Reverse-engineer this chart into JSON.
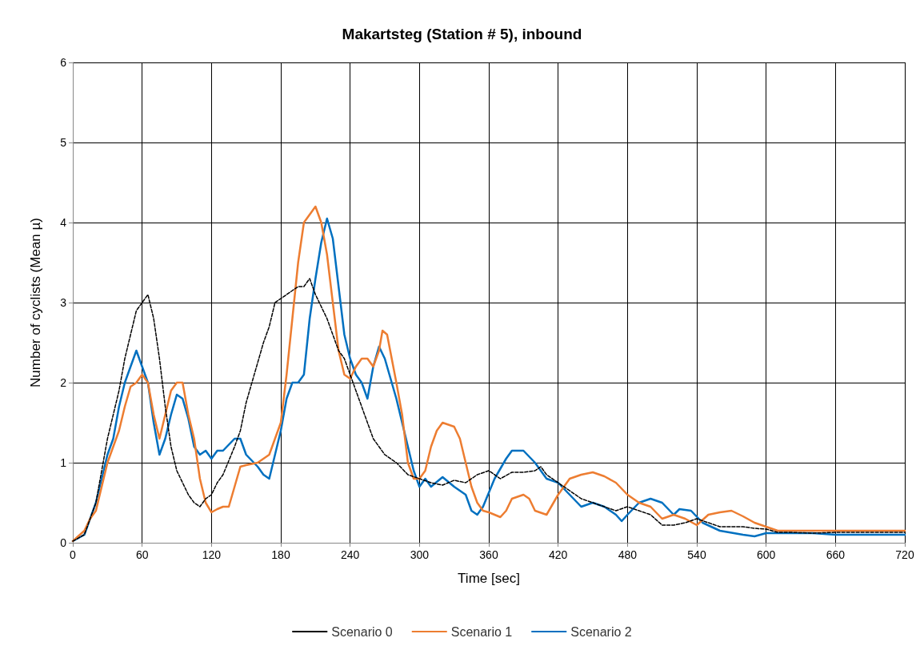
{
  "chart_data": {
    "type": "line",
    "title": "Makartsteg (Station # 5), inbound",
    "xlabel": "Time [sec]",
    "ylabel": "Number of cyclists (Mean µ)",
    "xlim": [
      0,
      720
    ],
    "xticks": [
      0,
      60,
      120,
      180,
      240,
      300,
      360,
      420,
      480,
      540,
      600,
      660,
      720
    ],
    "ylim": [
      0,
      6
    ],
    "yticks": [
      0,
      1,
      2,
      3,
      4,
      5,
      6
    ],
    "grid": true,
    "legend": "bottom",
    "marker": "none",
    "series": [
      {
        "name": "Scenario 0",
        "color": "#000000",
        "line_style": "dashed",
        "x": [
          0,
          10,
          20,
          25,
          30,
          40,
          45,
          50,
          55,
          60,
          65,
          70,
          75,
          80,
          85,
          90,
          95,
          100,
          105,
          110,
          115,
          120,
          125,
          130,
          140,
          145,
          150,
          155,
          160,
          165,
          170,
          175,
          180,
          190,
          195,
          200,
          205,
          210,
          215,
          220,
          225,
          230,
          235,
          240,
          245,
          250,
          255,
          260,
          265,
          270,
          280,
          290,
          300,
          310,
          320,
          330,
          340,
          350,
          360,
          370,
          380,
          390,
          400,
          405,
          410,
          420,
          430,
          440,
          450,
          460,
          470,
          480,
          490,
          500,
          510,
          520,
          530,
          540,
          550,
          560,
          570,
          580,
          590,
          600,
          610,
          620,
          640,
          660,
          720
        ],
        "values": [
          0.02,
          0.1,
          0.5,
          0.9,
          1.3,
          1.9,
          2.3,
          2.6,
          2.9,
          3.0,
          3.1,
          2.8,
          2.3,
          1.7,
          1.2,
          0.9,
          0.75,
          0.6,
          0.5,
          0.45,
          0.55,
          0.6,
          0.75,
          0.85,
          1.2,
          1.4,
          1.75,
          2.0,
          2.25,
          2.5,
          2.7,
          3.0,
          3.05,
          3.15,
          3.2,
          3.2,
          3.3,
          3.1,
          2.95,
          2.8,
          2.6,
          2.4,
          2.3,
          2.1,
          1.9,
          1.7,
          1.5,
          1.3,
          1.2,
          1.1,
          1.0,
          0.85,
          0.8,
          0.75,
          0.72,
          0.78,
          0.75,
          0.85,
          0.9,
          0.8,
          0.88,
          0.88,
          0.9,
          0.95,
          0.85,
          0.75,
          0.65,
          0.55,
          0.5,
          0.45,
          0.4,
          0.45,
          0.4,
          0.35,
          0.22,
          0.22,
          0.25,
          0.3,
          0.25,
          0.2,
          0.2,
          0.2,
          0.18,
          0.17,
          0.13,
          0.13,
          0.12,
          0.13,
          0.13
        ]
      },
      {
        "name": "Scenario 1",
        "color": "#ed7d31",
        "line_style": "solid",
        "x": [
          0,
          10,
          15,
          20,
          25,
          30,
          35,
          40,
          45,
          50,
          55,
          60,
          65,
          70,
          75,
          80,
          85,
          90,
          95,
          100,
          105,
          110,
          115,
          120,
          125,
          130,
          135,
          140,
          145,
          150,
          160,
          170,
          175,
          180,
          185,
          190,
          195,
          200,
          205,
          210,
          215,
          220,
          225,
          230,
          235,
          240,
          245,
          250,
          255,
          260,
          265,
          268,
          272,
          280,
          285,
          290,
          295,
          300,
          305,
          310,
          315,
          320,
          330,
          335,
          340,
          345,
          350,
          355,
          360,
          370,
          375,
          380,
          390,
          395,
          400,
          410,
          420,
          430,
          440,
          450,
          460,
          470,
          480,
          490,
          500,
          510,
          520,
          530,
          540,
          550,
          560,
          570,
          580,
          590,
          600,
          610,
          620,
          720
        ],
        "values": [
          0.02,
          0.15,
          0.3,
          0.4,
          0.7,
          1.0,
          1.2,
          1.4,
          1.7,
          1.95,
          2.0,
          2.1,
          2.0,
          1.6,
          1.3,
          1.6,
          1.9,
          2.0,
          2.0,
          1.6,
          1.3,
          0.8,
          0.5,
          0.38,
          0.42,
          0.45,
          0.45,
          0.7,
          0.95,
          0.97,
          1.0,
          1.1,
          1.3,
          1.5,
          2.1,
          2.8,
          3.5,
          4.0,
          4.1,
          4.2,
          4.0,
          3.6,
          3.0,
          2.4,
          2.1,
          2.05,
          2.2,
          2.3,
          2.3,
          2.2,
          2.4,
          2.65,
          2.6,
          2.0,
          1.6,
          1.0,
          0.8,
          0.8,
          0.9,
          1.2,
          1.4,
          1.5,
          1.45,
          1.3,
          1.0,
          0.7,
          0.5,
          0.4,
          0.38,
          0.32,
          0.4,
          0.55,
          0.6,
          0.55,
          0.4,
          0.35,
          0.6,
          0.8,
          0.85,
          0.88,
          0.83,
          0.75,
          0.6,
          0.5,
          0.45,
          0.3,
          0.35,
          0.3,
          0.22,
          0.35,
          0.38,
          0.4,
          0.33,
          0.25,
          0.2,
          0.15,
          0.15,
          0.15
        ]
      },
      {
        "name": "Scenario 2",
        "color": "#0070c0",
        "line_style": "solid",
        "x": [
          0,
          10,
          20,
          25,
          30,
          35,
          40,
          45,
          50,
          55,
          60,
          65,
          70,
          75,
          80,
          85,
          90,
          95,
          100,
          105,
          110,
          115,
          120,
          125,
          130,
          140,
          145,
          150,
          160,
          165,
          170,
          175,
          180,
          185,
          190,
          195,
          200,
          205,
          210,
          215,
          220,
          225,
          230,
          235,
          240,
          245,
          250,
          255,
          260,
          265,
          270,
          280,
          290,
          295,
          300,
          305,
          310,
          320,
          330,
          340,
          345,
          350,
          355,
          365,
          375,
          380,
          390,
          400,
          410,
          420,
          430,
          440,
          450,
          460,
          470,
          475,
          480,
          490,
          500,
          510,
          520,
          525,
          535,
          545,
          560,
          580,
          590,
          600,
          640,
          660,
          720
        ],
        "values": [
          0.02,
          0.1,
          0.5,
          0.8,
          1.1,
          1.3,
          1.7,
          2.0,
          2.2,
          2.4,
          2.2,
          2.0,
          1.5,
          1.1,
          1.3,
          1.6,
          1.85,
          1.8,
          1.55,
          1.2,
          1.1,
          1.15,
          1.05,
          1.15,
          1.15,
          1.3,
          1.3,
          1.1,
          0.95,
          0.85,
          0.8,
          1.1,
          1.4,
          1.8,
          2.0,
          2.0,
          2.1,
          2.8,
          3.3,
          3.75,
          4.05,
          3.8,
          3.2,
          2.6,
          2.3,
          2.1,
          2.0,
          1.8,
          2.2,
          2.45,
          2.3,
          1.8,
          1.2,
          0.9,
          0.7,
          0.8,
          0.7,
          0.82,
          0.7,
          0.6,
          0.4,
          0.35,
          0.45,
          0.8,
          1.05,
          1.15,
          1.15,
          1.0,
          0.8,
          0.75,
          0.6,
          0.45,
          0.5,
          0.45,
          0.35,
          0.27,
          0.35,
          0.5,
          0.55,
          0.5,
          0.35,
          0.42,
          0.4,
          0.25,
          0.15,
          0.1,
          0.08,
          0.12,
          0.12,
          0.1,
          0.1
        ]
      }
    ]
  }
}
